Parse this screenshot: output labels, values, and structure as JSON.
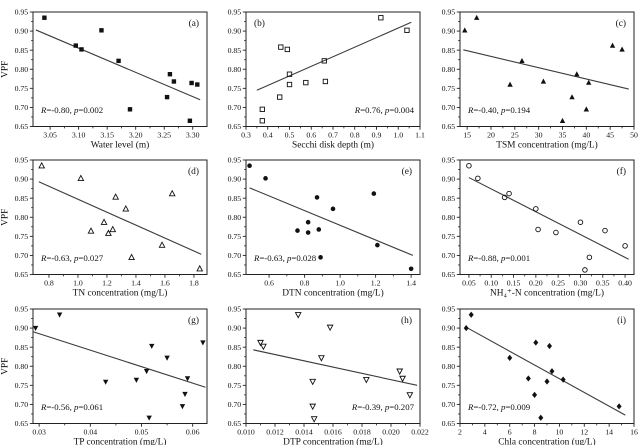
{
  "figure": {
    "background": "#ffffff",
    "text_color": "#111111",
    "axis_color": "#222222",
    "marker_color": "#111111",
    "trend_line_color": "#3c3c3c"
  },
  "chart_data": {
    "type": "scatter",
    "description": "3x3 grid of scatter plots of VPF versus environmental variables, each with a linear regression line and correlation statistics",
    "ylabel": "VPF",
    "ylim": [
      0.65,
      0.95
    ],
    "yticks": {
      "values": [
        0.65,
        0.7,
        0.75,
        0.8,
        0.85,
        0.9,
        0.95
      ],
      "labels": [
        "0.65",
        "0.70",
        "0.75",
        "0.80",
        "0.85",
        "0.90",
        "0.95"
      ]
    },
    "panels": [
      {
        "letter": "(a)",
        "letter_pos": "top-right",
        "marker": "square-filled",
        "xlabel": "Water level (m)",
        "show_ylabel": true,
        "xlim": [
          3.02,
          3.325
        ],
        "xticks": {
          "values": [
            3.05,
            3.1,
            3.15,
            3.2,
            3.25,
            3.3
          ],
          "labels": [
            "3.05",
            "3.10",
            "3.15",
            "3.20",
            "3.25",
            "3.30"
          ]
        },
        "stats_text": "R=-0.80, p=0.002",
        "stats_pos": "bottom-left",
        "points": [
          [
            3.04,
            0.935
          ],
          [
            3.14,
            0.902
          ],
          [
            3.095,
            0.862
          ],
          [
            3.105,
            0.852
          ],
          [
            3.17,
            0.822
          ],
          [
            3.26,
            0.787
          ],
          [
            3.267,
            0.768
          ],
          [
            3.298,
            0.764
          ],
          [
            3.308,
            0.76
          ],
          [
            3.255,
            0.727
          ],
          [
            3.19,
            0.695
          ],
          [
            3.295,
            0.665
          ]
        ],
        "trend_line": {
          "x1": 3.025,
          "y1": 0.903,
          "x2": 3.313,
          "y2": 0.72
        }
      },
      {
        "letter": "(b)",
        "letter_pos": "top-left",
        "marker": "square-open",
        "xlabel": "Secchi disk depth (m)",
        "show_ylabel": false,
        "xlim": [
          0.3,
          1.1
        ],
        "xticks": {
          "values": [
            0.3,
            0.4,
            0.5,
            0.6,
            0.7,
            0.8,
            0.9,
            1.0,
            1.1
          ],
          "labels": [
            "0.3",
            "0.4",
            "0.5",
            "0.6",
            "0.7",
            "0.8",
            "0.9",
            "1.0",
            "1.1"
          ]
        },
        "stats_text": "R=0.76, p=0.004",
        "stats_pos": "bottom-right",
        "points": [
          [
            0.92,
            0.935
          ],
          [
            1.04,
            0.902
          ],
          [
            0.46,
            0.858
          ],
          [
            0.49,
            0.852
          ],
          [
            0.66,
            0.822
          ],
          [
            0.5,
            0.787
          ],
          [
            0.665,
            0.768
          ],
          [
            0.575,
            0.765
          ],
          [
            0.5,
            0.76
          ],
          [
            0.455,
            0.727
          ],
          [
            0.375,
            0.695
          ],
          [
            0.375,
            0.665
          ]
        ],
        "trend_line": {
          "x1": 0.35,
          "y1": 0.745,
          "x2": 1.06,
          "y2": 0.923
        }
      },
      {
        "letter": "(c)",
        "letter_pos": "top-right",
        "marker": "triangle-up-filled",
        "xlabel": "TSM concentration (mg/L)",
        "show_ylabel": false,
        "xlim": [
          13.5,
          50
        ],
        "xticks": {
          "values": [
            15,
            20,
            25,
            30,
            35,
            40,
            45,
            50
          ],
          "labels": [
            "15",
            "20",
            "25",
            "30",
            "35",
            "40",
            "45",
            "50"
          ]
        },
        "stats_text": "R=-0.40, p=0.194",
        "stats_pos": "bottom-left",
        "points": [
          [
            17,
            0.935
          ],
          [
            14.5,
            0.902
          ],
          [
            45.5,
            0.862
          ],
          [
            47.5,
            0.852
          ],
          [
            26.5,
            0.822
          ],
          [
            38,
            0.787
          ],
          [
            31,
            0.768
          ],
          [
            40.5,
            0.765
          ],
          [
            24,
            0.76
          ],
          [
            37,
            0.727
          ],
          [
            40,
            0.695
          ],
          [
            35,
            0.665
          ]
        ],
        "trend_line": {
          "x1": 14.2,
          "y1": 0.851,
          "x2": 48.9,
          "y2": 0.748
        }
      },
      {
        "letter": "(d)",
        "letter_pos": "top-right",
        "marker": "triangle-up-open",
        "xlabel": "TN concentration (mg/L)",
        "show_ylabel": true,
        "xlim": [
          0.69,
          1.89
        ],
        "xticks": {
          "values": [
            0.8,
            1.0,
            1.2,
            1.4,
            1.6,
            1.8
          ],
          "labels": [
            "0.8",
            "1.0",
            "1.2",
            "1.4",
            "1.6",
            "1.8"
          ]
        },
        "stats_text": "R=-0.63, p=0.027",
        "stats_pos": "bottom-left",
        "points": [
          [
            0.75,
            0.935
          ],
          [
            1.02,
            0.902
          ],
          [
            1.65,
            0.862
          ],
          [
            1.26,
            0.853
          ],
          [
            1.33,
            0.822
          ],
          [
            1.18,
            0.787
          ],
          [
            1.24,
            0.768
          ],
          [
            1.09,
            0.764
          ],
          [
            1.21,
            0.758
          ],
          [
            1.58,
            0.727
          ],
          [
            1.37,
            0.695
          ],
          [
            1.84,
            0.665
          ]
        ],
        "trend_line": {
          "x1": 0.73,
          "y1": 0.893,
          "x2": 1.85,
          "y2": 0.703
        }
      },
      {
        "letter": "(e)",
        "letter_pos": "top-right",
        "marker": "circle-filled",
        "xlabel": "DTN concentration (mg/L)",
        "show_ylabel": false,
        "xlim": [
          0.47,
          1.45
        ],
        "xticks": {
          "values": [
            0.6,
            0.8,
            1.0,
            1.2,
            1.4
          ],
          "labels": [
            "0.6",
            "0.8",
            "1.0",
            "1.2",
            "1.4"
          ]
        },
        "stats_text": "R=-0.63, p=0.028",
        "stats_pos": "bottom-left",
        "points": [
          [
            0.49,
            0.935
          ],
          [
            0.58,
            0.902
          ],
          [
            1.19,
            0.862
          ],
          [
            0.87,
            0.852
          ],
          [
            0.96,
            0.822
          ],
          [
            0.82,
            0.787
          ],
          [
            0.88,
            0.768
          ],
          [
            0.76,
            0.765
          ],
          [
            0.82,
            0.76
          ],
          [
            1.21,
            0.727
          ],
          [
            0.89,
            0.695
          ],
          [
            1.4,
            0.665
          ]
        ],
        "trend_line": {
          "x1": 0.49,
          "y1": 0.877,
          "x2": 1.41,
          "y2": 0.7
        }
      },
      {
        "letter": "(f)",
        "letter_pos": "top-right",
        "marker": "circle-open",
        "xlabel": "NH₄⁺-N concentration (mg/L)",
        "show_ylabel": false,
        "xlim": [
          0.03,
          0.42
        ],
        "xticks": {
          "values": [
            0.05,
            0.1,
            0.15,
            0.2,
            0.25,
            0.3,
            0.35,
            0.4
          ],
          "labels": [
            "0.05",
            "0.10",
            "0.15",
            "0.20",
            "0.25",
            "0.30",
            "0.35",
            "0.40"
          ]
        },
        "stats_text": "R=-0.88, p=0.001",
        "stats_pos": "bottom-left",
        "points": [
          [
            0.05,
            0.935
          ],
          [
            0.07,
            0.902
          ],
          [
            0.14,
            0.862
          ],
          [
            0.13,
            0.852
          ],
          [
            0.2,
            0.822
          ],
          [
            0.3,
            0.787
          ],
          [
            0.205,
            0.768
          ],
          [
            0.355,
            0.765
          ],
          [
            0.245,
            0.76
          ],
          [
            0.4,
            0.725
          ],
          [
            0.32,
            0.695
          ],
          [
            0.31,
            0.662
          ]
        ],
        "trend_line": {
          "x1": 0.05,
          "y1": 0.904,
          "x2": 0.408,
          "y2": 0.69
        }
      },
      {
        "letter": "(g)",
        "letter_pos": "top-right",
        "marker": "triangle-down-filled",
        "xlabel": "TP concentration (mg/L)",
        "show_ylabel": true,
        "xlim": [
          0.0288,
          0.0628
        ],
        "xticks": {
          "values": [
            0.03,
            0.04,
            0.05,
            0.06
          ],
          "labels": [
            "0.03",
            "0.04",
            "0.05",
            "0.06"
          ]
        },
        "stats_text": "R=-0.56, p=0.061",
        "stats_pos": "bottom-left",
        "points": [
          [
            0.034,
            0.935
          ],
          [
            0.0293,
            0.9
          ],
          [
            0.062,
            0.862
          ],
          [
            0.052,
            0.853
          ],
          [
            0.055,
            0.822
          ],
          [
            0.051,
            0.787
          ],
          [
            0.059,
            0.768
          ],
          [
            0.049,
            0.764
          ],
          [
            0.043,
            0.759
          ],
          [
            0.0585,
            0.727
          ],
          [
            0.058,
            0.695
          ],
          [
            0.0515,
            0.665
          ]
        ],
        "trend_line": {
          "x1": 0.0289,
          "y1": 0.89,
          "x2": 0.0625,
          "y2": 0.745
        }
      },
      {
        "letter": "(h)",
        "letter_pos": "top-right",
        "marker": "triangle-down-open",
        "xlabel": "DTP concentration (mg/L)",
        "show_ylabel": false,
        "xlim": [
          0.01,
          0.022
        ],
        "xticks": {
          "values": [
            0.01,
            0.012,
            0.014,
            0.016,
            0.018,
            0.02,
            0.022
          ],
          "labels": [
            "0.010",
            "0.012",
            "0.014",
            "0.016",
            "0.018",
            "0.020",
            "0.022"
          ]
        },
        "stats_text": "R=-0.39, p=0.207",
        "stats_pos": "bottom-right",
        "points": [
          [
            0.0136,
            0.935
          ],
          [
            0.0158,
            0.902
          ],
          [
            0.011,
            0.862
          ],
          [
            0.0112,
            0.852
          ],
          [
            0.0152,
            0.822
          ],
          [
            0.0206,
            0.787
          ],
          [
            0.0208,
            0.768
          ],
          [
            0.0183,
            0.765
          ],
          [
            0.0146,
            0.76
          ],
          [
            0.0213,
            0.725
          ],
          [
            0.0146,
            0.695
          ],
          [
            0.0147,
            0.662
          ]
        ],
        "trend_line": {
          "x1": 0.0105,
          "y1": 0.843,
          "x2": 0.0218,
          "y2": 0.75
        }
      },
      {
        "letter": "(i)",
        "letter_pos": "top-right",
        "marker": "diamond-filled",
        "xlabel": "Chla concentration (ug/L)",
        "show_ylabel": false,
        "xlim": [
          2,
          16
        ],
        "xticks": {
          "values": [
            2,
            4,
            6,
            8,
            10,
            12,
            14,
            16
          ],
          "labels": [
            "2",
            "4",
            "6",
            "8",
            "10",
            "12",
            "14",
            "16"
          ]
        },
        "stats_text": "R=-0.72, p=0.009",
        "stats_pos": "bottom-left",
        "points": [
          [
            2.9,
            0.935
          ],
          [
            2.5,
            0.9
          ],
          [
            8.1,
            0.862
          ],
          [
            9.2,
            0.853
          ],
          [
            6.0,
            0.822
          ],
          [
            9.4,
            0.787
          ],
          [
            7.5,
            0.768
          ],
          [
            10.3,
            0.765
          ],
          [
            9.0,
            0.76
          ],
          [
            8.0,
            0.725
          ],
          [
            14.8,
            0.695
          ],
          [
            8.5,
            0.665
          ]
        ],
        "trend_line": {
          "x1": 2.4,
          "y1": 0.904,
          "x2": 15.3,
          "y2": 0.672
        }
      }
    ]
  }
}
